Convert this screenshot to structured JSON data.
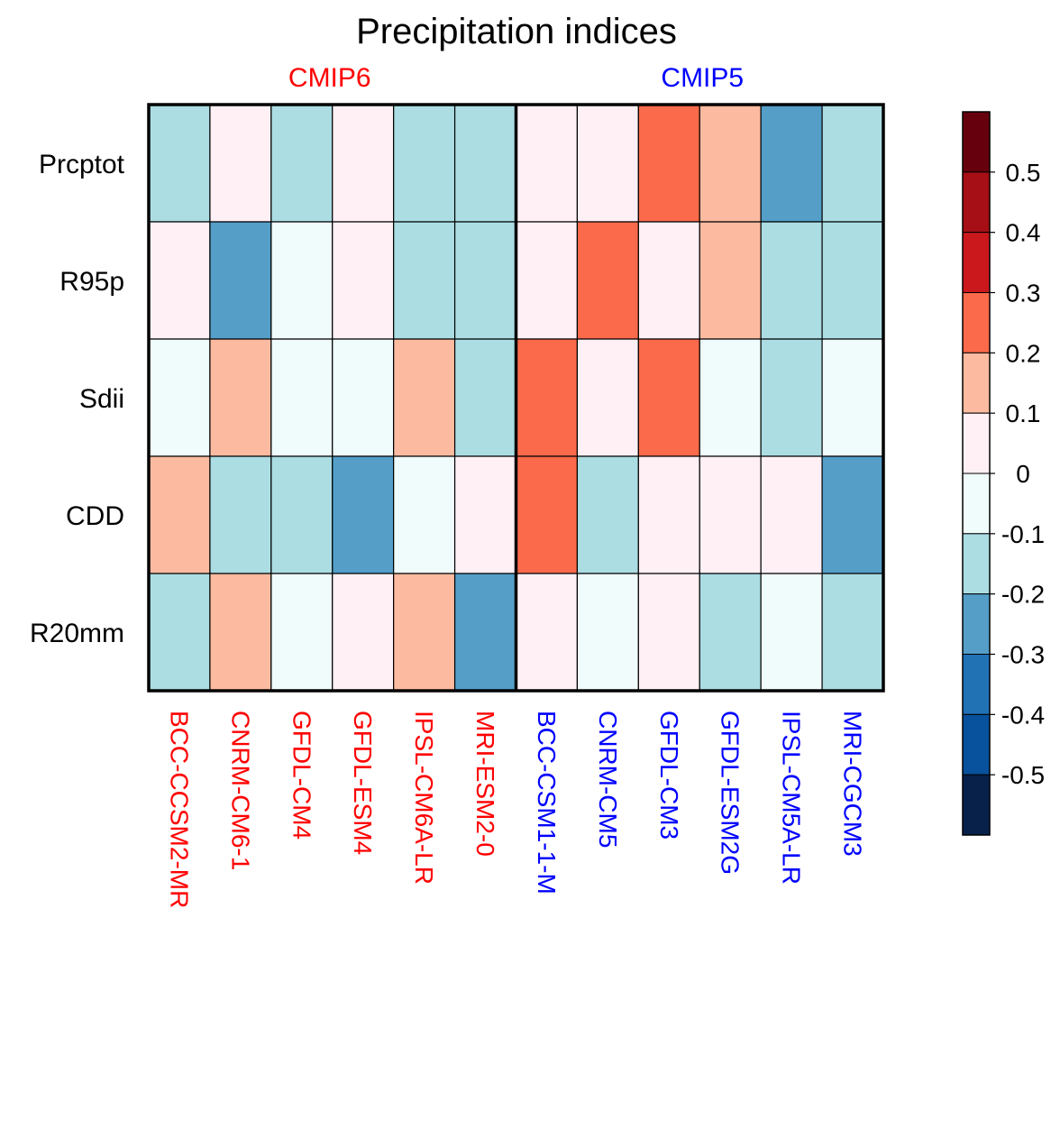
{
  "chart_data": {
    "type": "heatmap",
    "title": "Precipitation indices",
    "group_labels": [
      {
        "name": "CMIP6",
        "color": "#ff0000",
        "models": [
          "BCC-CCSM2-MR",
          "CNRM-CM6-1",
          "GFDL-CM4",
          "GFDL-ESM4",
          "IPSL-CM6A-LR",
          "MRI-ESM2-0"
        ]
      },
      {
        "name": "CMIP5",
        "color": "#0000ff",
        "models": [
          "BCC-CSM1-1-M",
          "CNRM-CM5",
          "GFDL-CM3",
          "GFDL-ESM2G",
          "IPSL-CM5A-LR",
          "MRI-CGCM3"
        ]
      }
    ],
    "x": [
      "BCC-CCSM2-MR",
      "CNRM-CM6-1",
      "GFDL-CM4",
      "GFDL-ESM4",
      "IPSL-CM6A-LR",
      "MRI-ESM2-0",
      "BCC-CSM1-1-M",
      "CNRM-CM5",
      "GFDL-CM3",
      "GFDL-ESM2G",
      "IPSL-CM5A-LR",
      "MRI-CGCM3"
    ],
    "x_colors": [
      "#ff0000",
      "#ff0000",
      "#ff0000",
      "#ff0000",
      "#ff0000",
      "#ff0000",
      "#0000ff",
      "#0000ff",
      "#0000ff",
      "#0000ff",
      "#0000ff",
      "#0000ff"
    ],
    "y": [
      "Prcptot",
      "R95p",
      "Sdii",
      "CDD",
      "R20mm"
    ],
    "values": [
      [
        -0.15,
        0.05,
        -0.15,
        0.05,
        -0.15,
        -0.15,
        0.05,
        0.05,
        0.25,
        0.15,
        -0.25,
        -0.15
      ],
      [
        0.05,
        -0.25,
        -0.05,
        0.05,
        -0.15,
        -0.15,
        0.05,
        0.25,
        0.05,
        0.15,
        -0.15,
        -0.15
      ],
      [
        -0.05,
        0.15,
        -0.05,
        -0.05,
        0.15,
        -0.15,
        0.25,
        0.05,
        0.25,
        -0.05,
        -0.15,
        -0.05
      ],
      [
        0.15,
        -0.15,
        -0.15,
        -0.25,
        -0.05,
        0.05,
        0.25,
        -0.15,
        0.05,
        0.05,
        0.05,
        -0.25
      ],
      [
        -0.15,
        0.15,
        -0.05,
        0.05,
        0.15,
        -0.25,
        0.05,
        -0.05,
        0.05,
        -0.15,
        -0.05,
        -0.15
      ]
    ],
    "colorbar": {
      "levels": [
        0.6,
        0.5,
        0.4,
        0.3,
        0.2,
        0.1,
        0,
        -0.1,
        -0.2,
        -0.3,
        -0.4,
        -0.5,
        -0.6
      ],
      "tick_labels": [
        "0.5",
        "0.4",
        "0.3",
        "0.2",
        "0.1",
        "0",
        "-0.1",
        "-0.2",
        "-0.3",
        "-0.4",
        "-0.5"
      ],
      "colors": [
        "#67000d",
        "#a50f15",
        "#cb181d",
        "#fb6a4a",
        "#fcbba1",
        "#fff0f5",
        "#f0fbfc",
        "#abdde3",
        "#549ec8",
        "#2171b5",
        "#08519c",
        "#08214a"
      ]
    }
  }
}
